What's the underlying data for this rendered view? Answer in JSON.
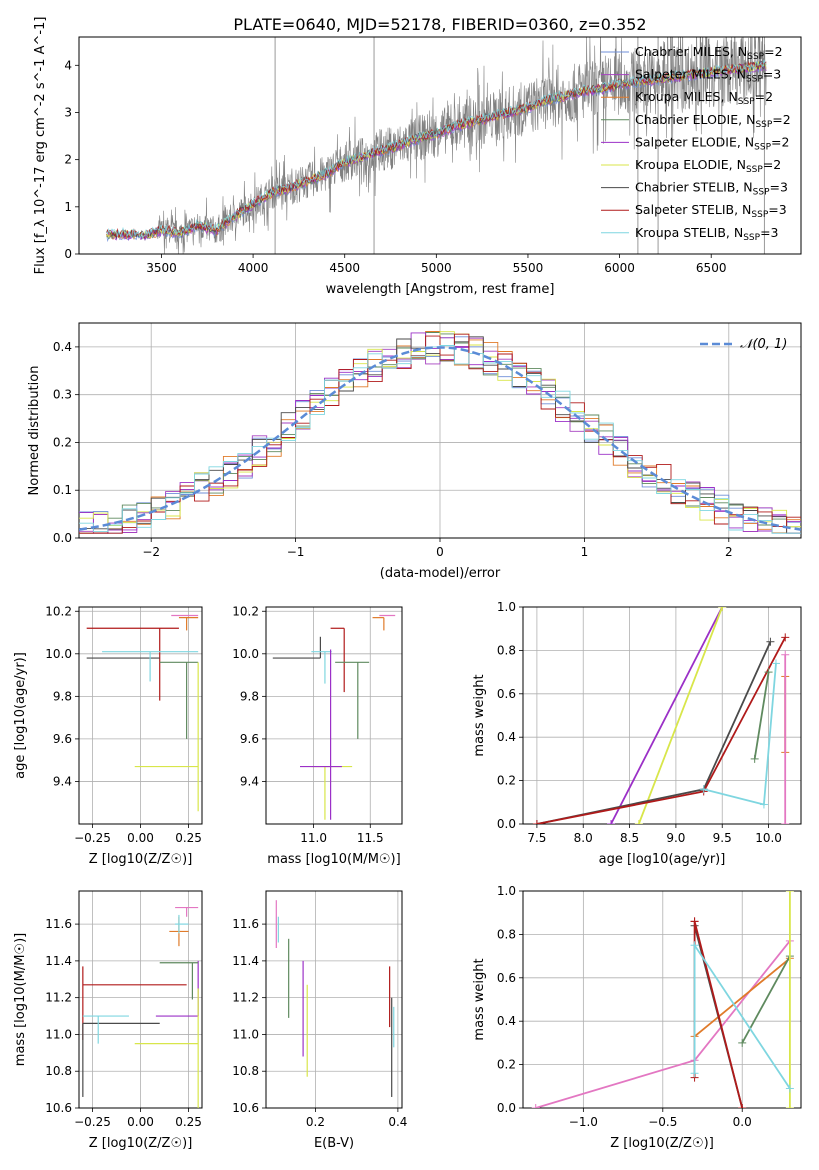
{
  "figure": {
    "title": "PLATE=0640, MJD=52178, FIBERID=0360, z=0.352"
  },
  "chart_data": [
    {
      "id": "spectrum",
      "type": "line",
      "title": "PLATE=0640, MJD=52178, FIBERID=0360, z=0.352",
      "xlabel": "wavelength [Angstrom, rest frame]",
      "ylabel": "Flux [f_λ 10^-17 erg cm^-2 s^-1 A^-1]",
      "xlim": [
        3050,
        6990
      ],
      "ylim": [
        0,
        4.6
      ],
      "xticks": [
        3500,
        4000,
        4500,
        5000,
        5500,
        6000,
        6500
      ],
      "yticks": [
        0,
        1,
        2,
        3,
        4
      ],
      "grid": false,
      "legend_position": "right",
      "legend": [
        {
          "name": "Chabrier MILES",
          "nssp": "2",
          "color": "#6f8fd8"
        },
        {
          "name": "Salpeter MILES",
          "nssp": "3",
          "color": "#a640c0"
        },
        {
          "name": "Kroupa MILES",
          "nssp": "2",
          "color": "#e07b2a"
        },
        {
          "name": "Chabrier ELODIE",
          "nssp": "2",
          "color": "#5f8a5f"
        },
        {
          "name": "Salpeter ELODIE",
          "nssp": "2",
          "color": "#9b30c7"
        },
        {
          "name": "Kroupa ELODIE",
          "nssp": "2",
          "color": "#d8e64a"
        },
        {
          "name": "Chabrier STELIB",
          "nssp": "3",
          "color": "#4a4a4a"
        },
        {
          "name": "Salpeter STELIB",
          "nssp": "3",
          "color": "#b01a1a"
        },
        {
          "name": "Kroupa STELIB",
          "nssp": "3",
          "color": "#7fd6e0"
        }
      ],
      "data_color": "#808080",
      "spikes": [
        {
          "x": 4120,
          "y": 4.6
        },
        {
          "x": 4660,
          "y": 4.6
        },
        {
          "x": 6100,
          "y": 4.6
        },
        {
          "x": 6210,
          "y": 4.6
        },
        {
          "x": 6790,
          "y": 4.6
        }
      ],
      "model_anchor_x": [
        3200,
        3300,
        3400,
        3500,
        3600,
        3700,
        3800,
        3900,
        4000,
        4100,
        4200,
        4300,
        4400,
        4500,
        4600,
        4700,
        4800,
        4900,
        5000,
        5100,
        5200,
        5300,
        5400,
        5500,
        5600,
        5700,
        5800,
        5900,
        6000,
        6100,
        6200,
        6300,
        6400,
        6500,
        6600,
        6700,
        6800
      ],
      "model_anchor_y": [
        0.4,
        0.42,
        0.38,
        0.5,
        0.45,
        0.6,
        0.5,
        0.8,
        1.05,
        1.3,
        1.4,
        1.55,
        1.7,
        1.95,
        2.05,
        2.2,
        2.3,
        2.45,
        2.55,
        2.7,
        2.8,
        2.9,
        3.0,
        3.1,
        3.25,
        3.35,
        3.45,
        3.5,
        3.6,
        3.65,
        3.7,
        3.75,
        3.8,
        3.85,
        3.9,
        3.95,
        4.0
      ]
    },
    {
      "id": "residuals",
      "type": "line",
      "xlabel": "(data-model)/error",
      "ylabel": "Normed distribution",
      "xlim": [
        -2.5,
        2.5
      ],
      "ylim": [
        0,
        0.45
      ],
      "xticks": [
        -2,
        -1,
        0,
        1,
        2
      ],
      "yticks": [
        0.0,
        0.1,
        0.2,
        0.3,
        0.4
      ],
      "grid": true,
      "legend_position": "top-right",
      "legend": [
        {
          "name": "N(0,1)",
          "label": "𝒩(0, 1)",
          "color": "#5b8bd6",
          "style": "dashed"
        }
      ],
      "note": "step histograms of the 9 model fits around a standard normal"
    },
    {
      "id": "age-vs-Z",
      "type": "scatter",
      "xlabel": "Z [log10(Z/Z☉)]",
      "ylabel": "age [log10(age/yr)]",
      "xlim": [
        -0.32,
        0.32
      ],
      "ylim": [
        9.2,
        10.22
      ],
      "xticks": [
        -0.25,
        0.0,
        0.25
      ],
      "yticks": [
        9.4,
        9.6,
        9.8,
        10.0,
        10.2
      ],
      "grid": true,
      "errorbars": [
        {
          "color": "#b01a1a",
          "x": 0.1,
          "xerr": [
            0.38,
            0.1
          ],
          "y": 10.12,
          "yerr": [
            0.34,
            0.0
          ]
        },
        {
          "color": "#4a4a4a",
          "x": 0.0,
          "xerr": [
            0.28,
            0.1
          ],
          "y": 9.98,
          "yerr": [
            0.0,
            0.0
          ]
        },
        {
          "color": "#7fd6e0",
          "x": 0.05,
          "xerr": [
            0.25,
            0.25
          ],
          "y": 10.01,
          "yerr": [
            0.14,
            0.0
          ]
        },
        {
          "color": "#d8e64a",
          "x": 0.3,
          "xerr": [
            0.33,
            0.0
          ],
          "y": 9.47,
          "yerr": [
            0.0,
            0.0
          ]
        },
        {
          "color": "#5f8a5f",
          "x": 0.24,
          "xerr": [
            0.14,
            0.06
          ],
          "y": 9.96,
          "yerr": [
            0.36,
            0.0
          ]
        },
        {
          "color": "#d8e64a",
          "x": 0.3,
          "xerr": [
            0.0,
            0.0
          ],
          "y": 9.96,
          "yerr": [
            0.7,
            0.0
          ]
        },
        {
          "color": "#e07b2a",
          "x": 0.24,
          "xerr": [
            0.04,
            0.06
          ],
          "y": 10.17,
          "yerr": [
            0.06,
            0.0
          ]
        },
        {
          "color": "#e377c2",
          "x": 0.24,
          "xerr": [
            0.08,
            0.06
          ],
          "y": 10.18,
          "yerr": [
            0.0,
            0.0
          ]
        }
      ]
    },
    {
      "id": "age-vs-mass",
      "type": "scatter",
      "xlabel": "mass [log10(M/M☉)]",
      "ylabel": "",
      "xlim": [
        10.58,
        11.78
      ],
      "ylim": [
        9.2,
        10.22
      ],
      "xticks": [
        11.0,
        11.5
      ],
      "yticks": [
        9.4,
        9.6,
        9.8,
        10.0,
        10.2
      ],
      "grid": true,
      "errorbars": [
        {
          "color": "#b01a1a",
          "x": 11.27,
          "xerr": [
            0.12,
            0.0
          ],
          "y": 10.12,
          "yerr": [
            0.3,
            0.0
          ]
        },
        {
          "color": "#4a4a4a",
          "x": 11.06,
          "xerr": [
            0.42,
            0.0
          ],
          "y": 9.98,
          "yerr": [
            0.0,
            0.1
          ]
        },
        {
          "color": "#7fd6e0",
          "x": 11.1,
          "xerr": [
            0.12,
            0.06
          ],
          "y": 10.01,
          "yerr": [
            0.15,
            0.0
          ]
        },
        {
          "color": "#d8e64a",
          "x": 11.1,
          "xerr": [
            0.12,
            0.24
          ],
          "y": 9.47,
          "yerr": [
            0.25,
            0.0
          ]
        },
        {
          "color": "#9b30c7",
          "x": 11.15,
          "xerr": [
            0.27,
            0.1
          ],
          "y": 9.47,
          "yerr": [
            0.25,
            0.55
          ]
        },
        {
          "color": "#5f8a5f",
          "x": 11.39,
          "xerr": [
            0.2,
            0.1
          ],
          "y": 9.96,
          "yerr": [
            0.36,
            0.0
          ]
        },
        {
          "color": "#e07b2a",
          "x": 11.62,
          "xerr": [
            0.1,
            0.0
          ],
          "y": 10.17,
          "yerr": [
            0.06,
            0.0
          ]
        },
        {
          "color": "#e377c2",
          "x": 11.66,
          "xerr": [
            0.08,
            0.06
          ],
          "y": 10.18,
          "yerr": [
            0.0,
            0.0
          ]
        }
      ]
    },
    {
      "id": "massweight-vs-age",
      "type": "line",
      "xlabel": "age [log10(age/yr)]",
      "ylabel": "mass weight",
      "xlim": [
        7.35,
        10.35
      ],
      "ylim": [
        0,
        1.0
      ],
      "xticks": [
        7.5,
        8.0,
        8.5,
        9.0,
        9.5,
        10.0
      ],
      "yticks": [
        0.0,
        0.2,
        0.4,
        0.6,
        0.8,
        1.0
      ],
      "grid": true,
      "series": [
        {
          "color": "#9b30c7",
          "points": [
            [
              8.3,
              0.0
            ],
            [
              9.5,
              1.0
            ]
          ]
        },
        {
          "color": "#d8e64a",
          "points": [
            [
              8.6,
              0.0
            ],
            [
              9.5,
              1.0
            ]
          ]
        },
        {
          "color": "#4a4a4a",
          "points": [
            [
              7.5,
              0.0
            ],
            [
              9.3,
              0.16
            ],
            [
              10.02,
              0.84
            ]
          ]
        },
        {
          "color": "#b01a1a",
          "points": [
            [
              7.5,
              0.0
            ],
            [
              9.3,
              0.15
            ],
            [
              10.18,
              0.86
            ]
          ]
        },
        {
          "color": "#7fd6e0",
          "points": [
            [
              9.3,
              0.16
            ],
            [
              9.95,
              0.09
            ],
            [
              10.08,
              0.74
            ]
          ]
        },
        {
          "color": "#5f8a5f",
          "points": [
            [
              9.85,
              0.3
            ],
            [
              10.0,
              0.7
            ]
          ]
        },
        {
          "color": "#e07b2a",
          "points": [
            [
              10.18,
              0.33
            ],
            [
              10.18,
              0.68
            ]
          ]
        },
        {
          "color": "#e377c2",
          "points": [
            [
              10.18,
              0.0
            ],
            [
              10.18,
              0.78
            ]
          ]
        }
      ]
    },
    {
      "id": "mass-vs-Z",
      "type": "scatter",
      "xlabel": "Z [log10(Z/Z☉)]",
      "ylabel": "mass [log10(M/M☉)]",
      "xlim": [
        -0.32,
        0.32
      ],
      "ylim": [
        10.6,
        11.78
      ],
      "xticks": [
        -0.25,
        0.0,
        0.25
      ],
      "yticks": [
        10.6,
        10.8,
        11.0,
        11.2,
        11.4,
        11.6
      ],
      "grid": true,
      "errorbars": [
        {
          "color": "#b01a1a",
          "x": -0.3,
          "xerr": [
            0.0,
            0.54
          ],
          "y": 11.27,
          "yerr": [
            0.3,
            0.1
          ]
        },
        {
          "color": "#4a4a4a",
          "x": -0.3,
          "xerr": [
            0.0,
            0.4
          ],
          "y": 11.06,
          "yerr": [
            0.4,
            0.0
          ]
        },
        {
          "color": "#7fd6e0",
          "x": -0.22,
          "xerr": [
            0.08,
            0.16
          ],
          "y": 11.1,
          "yerr": [
            0.15,
            0.0
          ]
        },
        {
          "color": "#9b30c7",
          "x": 0.3,
          "xerr": [
            0.22,
            0.0
          ],
          "y": 11.1,
          "yerr": [
            0.0,
            0.3
          ]
        },
        {
          "color": "#d8e64a",
          "x": 0.3,
          "xerr": [
            0.33,
            0.0
          ],
          "y": 10.95,
          "yerr": [
            0.35,
            0.3
          ]
        },
        {
          "color": "#5f8a5f",
          "x": 0.27,
          "xerr": [
            0.17,
            0.03
          ],
          "y": 11.39,
          "yerr": [
            0.2,
            0.0
          ]
        },
        {
          "color": "#e07b2a",
          "x": 0.2,
          "xerr": [
            0.05,
            0.05
          ],
          "y": 11.56,
          "yerr": [
            0.08,
            0.08
          ]
        },
        {
          "color": "#e377c2",
          "x": 0.24,
          "xerr": [
            0.06,
            0.06
          ],
          "y": 11.69,
          "yerr": [
            0.05,
            0.0
          ]
        },
        {
          "color": "#7fd6e0",
          "x": 0.2,
          "xerr": [
            0.02,
            0.05
          ],
          "y": 11.6,
          "yerr": [
            0.05,
            0.05
          ]
        }
      ]
    },
    {
      "id": "mass-vs-EBV",
      "type": "scatter",
      "xlabel": "E(B-V)",
      "ylabel": "",
      "xlim": [
        0.08,
        0.41
      ],
      "ylim": [
        10.6,
        11.78
      ],
      "xticks": [
        0.2,
        0.4
      ],
      "yticks": [
        10.6,
        10.8,
        11.0,
        11.2,
        11.4,
        11.6
      ],
      "grid": true,
      "errorbars": [
        {
          "color": "#e377c2",
          "x": 0.105,
          "yrange": [
            11.47,
            11.73
          ]
        },
        {
          "color": "#7fd6e0",
          "x": 0.11,
          "yrange": [
            11.5,
            11.64
          ]
        },
        {
          "color": "#5f8a5f",
          "x": 0.135,
          "yrange": [
            11.09,
            11.52
          ]
        },
        {
          "color": "#9b30c7",
          "x": 0.17,
          "yrange": [
            10.88,
            11.4
          ]
        },
        {
          "color": "#d8e64a",
          "x": 0.18,
          "yrange": [
            10.77,
            11.27
          ]
        },
        {
          "color": "#b01a1a",
          "x": 0.38,
          "yrange": [
            11.04,
            11.37
          ]
        },
        {
          "color": "#4a4a4a",
          "x": 0.385,
          "yrange": [
            10.66,
            11.2
          ]
        },
        {
          "color": "#7fd6e0",
          "x": 0.39,
          "yrange": [
            10.93,
            11.15
          ]
        }
      ]
    },
    {
      "id": "massweight-vs-Z",
      "type": "line",
      "xlabel": "Z [log10(Z/Z☉)]",
      "ylabel": "mass weight",
      "xlim": [
        -1.38,
        0.37
      ],
      "ylim": [
        0,
        1.0
      ],
      "xticks": [
        -1.0,
        -0.5,
        0.0
      ],
      "yticks": [
        0.0,
        0.2,
        0.4,
        0.6,
        0.8,
        1.0
      ],
      "grid": true,
      "series": [
        {
          "color": "#e377c2",
          "points": [
            [
              -1.3,
              0.0
            ],
            [
              -0.3,
              0.22
            ],
            [
              0.3,
              0.77
            ]
          ]
        },
        {
          "color": "#e07b2a",
          "points": [
            [
              -0.3,
              0.33
            ],
            [
              0.3,
              0.69
            ]
          ]
        },
        {
          "color": "#5f8a5f",
          "points": [
            [
              0.0,
              0.3
            ],
            [
              0.3,
              0.7
            ]
          ]
        },
        {
          "color": "#d8e64a",
          "points": [
            [
              0.3,
              0.0
            ],
            [
              0.3,
              1.0
            ]
          ]
        },
        {
          "color": "#4a4a4a",
          "points": [
            [
              -0.3,
              0.84
            ],
            [
              0.0,
              0.0
            ]
          ]
        },
        {
          "color": "#b01a1a",
          "points": [
            [
              -0.3,
              0.86
            ],
            [
              0.0,
              0.0
            ]
          ]
        },
        {
          "color": "#b01a1a",
          "points": [
            [
              -0.3,
              0.14
            ],
            [
              -0.3,
              0.86
            ]
          ]
        },
        {
          "color": "#7fd6e0",
          "points": [
            [
              -0.3,
              0.16
            ],
            [
              -0.3,
              0.75
            ],
            [
              0.3,
              0.09
            ]
          ]
        }
      ]
    }
  ]
}
